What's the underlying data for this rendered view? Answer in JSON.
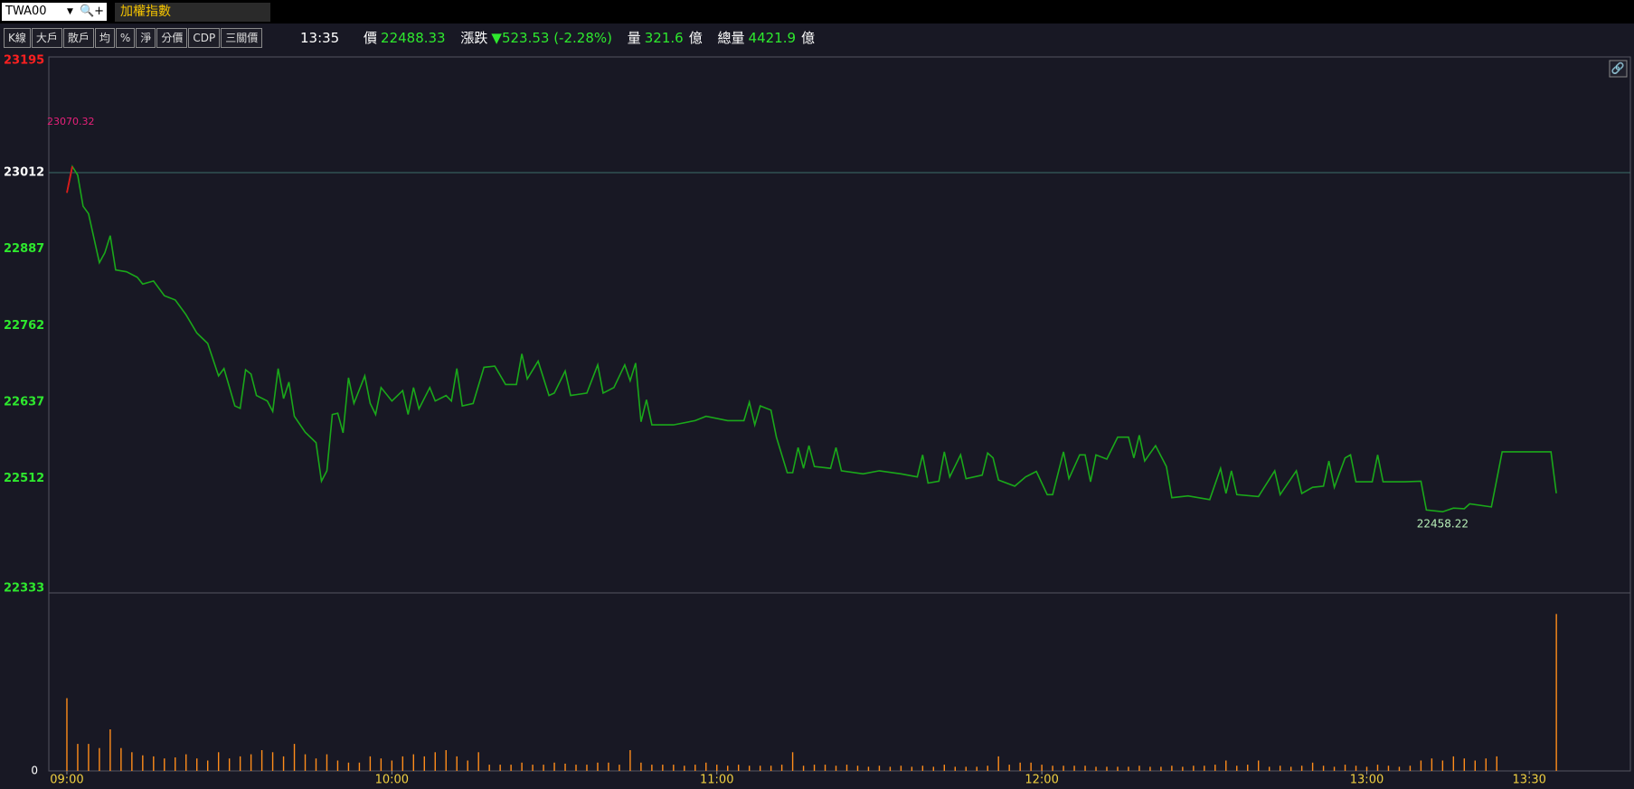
{
  "header": {
    "symbol": "TWA00",
    "name": "加權指數"
  },
  "toolbar": {
    "buttons": [
      "K線",
      "大戶",
      "散戶",
      "均",
      "%",
      "淨",
      "分價",
      "CDP",
      "三關價"
    ]
  },
  "quote": {
    "time": "13:35",
    "price_label": "價",
    "price": "22488.33",
    "change_label": "漲跌",
    "change": "▼523.53 (-2.28%)",
    "volume_label": "量",
    "volume": "321.6",
    "volume_unit": "億",
    "total_label": "總量",
    "total": "4421.9",
    "total_unit": "億"
  },
  "chart_data": [
    {
      "type": "line",
      "high_label": "23070.32",
      "low_label": "22458.22",
      "first_segment_color": "#e0161b",
      "reference_line_tick": 1,
      "ylim": [
        22333,
        23195
      ],
      "yticks": [
        23195,
        23012,
        22887,
        22762,
        22637,
        22512,
        22333
      ],
      "ytick_colors": [
        "#ff2020",
        "#ffffff",
        "#2ee82e",
        "#2ee82e",
        "#2ee82e",
        "#2ee82e",
        "#2ee82e"
      ],
      "xlim": [
        "08:57",
        "13:49"
      ],
      "x": [
        "09:00",
        "09:01",
        "09:02",
        "09:03",
        "09:04",
        "09:06",
        "09:07",
        "09:08",
        "09:09",
        "09:11",
        "09:13",
        "09:14",
        "09:16",
        "09:18",
        "09:20",
        "09:22",
        "09:24",
        "09:26",
        "09:28",
        "09:29",
        "09:31",
        "09:32",
        "09:33",
        "09:34",
        "09:35",
        "09:37",
        "09:38",
        "09:39",
        "09:40",
        "09:41",
        "09:42",
        "09:44",
        "09:46",
        "09:47",
        "09:48",
        "09:49",
        "09:50",
        "09:51",
        "09:52",
        "09:53",
        "09:55",
        "09:56",
        "09:57",
        "09:58",
        "10:00",
        "10:02",
        "10:03",
        "10:04",
        "10:05",
        "10:07",
        "10:08",
        "10:10",
        "10:11",
        "10:12",
        "10:13",
        "10:15",
        "10:17",
        "10:19",
        "10:21",
        "10:23",
        "10:24",
        "10:25",
        "10:27",
        "10:29",
        "10:30",
        "10:32",
        "10:33",
        "10:36",
        "10:38",
        "10:39",
        "10:41",
        "10:43",
        "10:44",
        "10:45",
        "10:46",
        "10:47",
        "10:48",
        "10:52",
        "10:56",
        "10:58",
        "11:02",
        "11:05",
        "11:06",
        "11:07",
        "11:08",
        "11:10",
        "11:11",
        "11:13",
        "11:14",
        "11:15",
        "11:16",
        "11:17",
        "11:18",
        "11:21",
        "11:22",
        "11:23",
        "11:27",
        "11:30",
        "11:34",
        "11:37",
        "11:38",
        "11:39",
        "11:41",
        "11:42",
        "11:43",
        "11:45",
        "11:46",
        "11:49",
        "11:50",
        "11:51",
        "11:52",
        "11:55",
        "11:57",
        "11:59",
        "12:01",
        "12:02",
        "12:04",
        "12:05",
        "12:07",
        "12:08",
        "12:09",
        "12:10",
        "12:12",
        "12:14",
        "12:16",
        "12:17",
        "12:18",
        "12:19",
        "12:21",
        "12:23",
        "12:24",
        "12:27",
        "12:31",
        "12:33",
        "12:34",
        "12:35",
        "12:36",
        "12:40",
        "12:43",
        "12:44",
        "12:47",
        "12:48",
        "12:50",
        "12:52",
        "12:53",
        "12:54",
        "12:56",
        "12:57",
        "12:58",
        "13:01",
        "13:02",
        "13:03",
        "13:07",
        "13:10",
        "13:11",
        "13:14",
        "13:16",
        "13:18",
        "13:19",
        "13:23",
        "13:25",
        "13:34",
        "13:35"
      ],
      "series": [
        {
          "color": "#1aa81a",
          "values": [
            22979,
            23022,
            23008,
            22957,
            22945,
            22865,
            22881,
            22909,
            22853,
            22850,
            22841,
            22830,
            22835,
            22811,
            22804,
            22780,
            22750,
            22733,
            22680,
            22692,
            22631,
            22627,
            22690,
            22683,
            22648,
            22639,
            22622,
            22692,
            22643,
            22670,
            22614,
            22588,
            22571,
            22508,
            22525,
            22617,
            22619,
            22587,
            22677,
            22635,
            22680,
            22635,
            22617,
            22661,
            22639,
            22656,
            22617,
            22661,
            22626,
            22661,
            22639,
            22648,
            22639,
            22692,
            22631,
            22635,
            22694,
            22696,
            22666,
            22666,
            22716,
            22675,
            22704,
            22648,
            22652,
            22688,
            22648,
            22652,
            22698,
            22652,
            22661,
            22698,
            22672,
            22701,
            22605,
            22641,
            22600,
            22600,
            22607,
            22614,
            22607,
            22607,
            22637,
            22600,
            22631,
            22624,
            22580,
            22522,
            22522,
            22563,
            22529,
            22566,
            22532,
            22529,
            22563,
            22525,
            22520,
            22525,
            22520,
            22515,
            22551,
            22505,
            22508,
            22556,
            22515,
            22551,
            22512,
            22518,
            22554,
            22546,
            22510,
            22500,
            22515,
            22524,
            22486,
            22486,
            22556,
            22512,
            22551,
            22551,
            22507,
            22551,
            22544,
            22580,
            22580,
            22546,
            22583,
            22541,
            22566,
            22532,
            22481,
            22484,
            22478,
            22529,
            22488,
            22525,
            22486,
            22483,
            22525,
            22486,
            22525,
            22488,
            22498,
            22500,
            22541,
            22498,
            22546,
            22551,
            22507,
            22507,
            22551,
            22507,
            22507,
            22508,
            22461,
            22458.22,
            22464,
            22463,
            22471,
            22466,
            22556,
            22556,
            22488.33
          ]
        }
      ]
    },
    {
      "type": "bar",
      "color": "#ff8c1a",
      "ylim": [
        0,
        160
      ],
      "yticks": [
        0
      ],
      "xlim": [
        "08:57",
        "13:49"
      ],
      "xticks": [
        "09:00",
        "10:00",
        "11:00",
        "12:00",
        "13:00",
        "13:30"
      ],
      "x": [
        "09:00",
        "09:02",
        "09:04",
        "09:06",
        "09:08",
        "09:10",
        "09:12",
        "09:14",
        "09:16",
        "09:18",
        "09:20",
        "09:22",
        "09:24",
        "09:26",
        "09:28",
        "09:30",
        "09:32",
        "09:34",
        "09:36",
        "09:38",
        "09:40",
        "09:42",
        "09:44",
        "09:46",
        "09:48",
        "09:50",
        "09:52",
        "09:54",
        "09:56",
        "09:58",
        "10:00",
        "10:02",
        "10:04",
        "10:06",
        "10:08",
        "10:10",
        "10:12",
        "10:14",
        "10:16",
        "10:18",
        "10:20",
        "10:22",
        "10:24",
        "10:26",
        "10:28",
        "10:30",
        "10:32",
        "10:34",
        "10:36",
        "10:38",
        "10:40",
        "10:42",
        "10:44",
        "10:46",
        "10:48",
        "10:50",
        "10:52",
        "10:54",
        "10:56",
        "10:58",
        "11:00",
        "11:02",
        "11:04",
        "11:06",
        "11:08",
        "11:10",
        "11:12",
        "11:14",
        "11:16",
        "11:18",
        "11:20",
        "11:22",
        "11:24",
        "11:26",
        "11:28",
        "11:30",
        "11:32",
        "11:34",
        "11:36",
        "11:38",
        "11:40",
        "11:42",
        "11:44",
        "11:46",
        "11:48",
        "11:50",
        "11:52",
        "11:54",
        "11:56",
        "11:58",
        "12:00",
        "12:02",
        "12:04",
        "12:06",
        "12:08",
        "12:10",
        "12:12",
        "12:14",
        "12:16",
        "12:18",
        "12:20",
        "12:22",
        "12:24",
        "12:26",
        "12:28",
        "12:30",
        "12:32",
        "12:34",
        "12:36",
        "12:38",
        "12:40",
        "12:42",
        "12:44",
        "12:46",
        "12:48",
        "12:50",
        "12:52",
        "12:54",
        "12:56",
        "12:58",
        "13:00",
        "13:02",
        "13:04",
        "13:06",
        "13:08",
        "13:10",
        "13:12",
        "13:14",
        "13:16",
        "13:18",
        "13:20",
        "13:22",
        "13:24",
        "13:35"
      ],
      "values": [
        70,
        26,
        26,
        22,
        40,
        22,
        18,
        15,
        14,
        12,
        13,
        16,
        12,
        10,
        18,
        12,
        14,
        16,
        20,
        18,
        14,
        26,
        16,
        12,
        16,
        10,
        8,
        8,
        14,
        12,
        10,
        14,
        16,
        14,
        18,
        20,
        14,
        10,
        18,
        6,
        6,
        6,
        8,
        6,
        6,
        8,
        7,
        6,
        6,
        8,
        8,
        6,
        20,
        8,
        6,
        6,
        6,
        5,
        6,
        8,
        6,
        5,
        6,
        5,
        5,
        5,
        6,
        18,
        5,
        6,
        6,
        5,
        6,
        5,
        4,
        5,
        4,
        5,
        4,
        5,
        4,
        6,
        4,
        4,
        4,
        5,
        14,
        6,
        8,
        8,
        6,
        5,
        5,
        5,
        5,
        4,
        4,
        4,
        4,
        5,
        4,
        4,
        5,
        4,
        5,
        5,
        6,
        10,
        5,
        6,
        10,
        4,
        5,
        4,
        5,
        8,
        5,
        4,
        6,
        5,
        4,
        6,
        5,
        4,
        5,
        10,
        12,
        10,
        14,
        12,
        10,
        12,
        14,
        151
      ]
    }
  ]
}
